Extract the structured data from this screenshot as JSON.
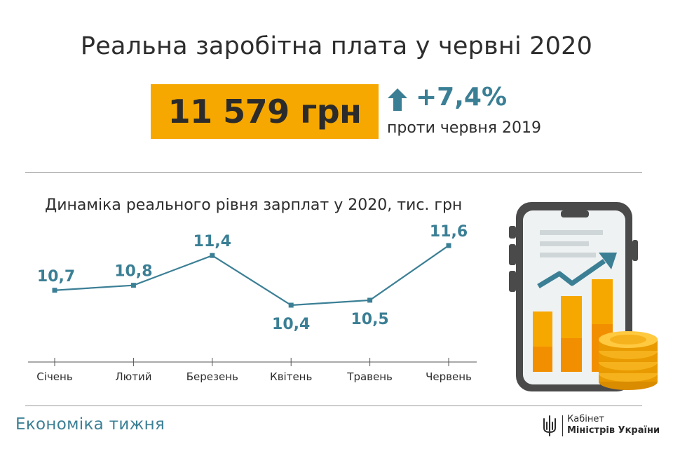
{
  "header": {
    "title": "Реальна заробітна плата у червні 2020",
    "amount": "11 579 грн",
    "change": "+7,4%",
    "compare": "проти червня 2019"
  },
  "chart_data": {
    "type": "line",
    "title": "Динаміка реального рівня зарплат у 2020, тис. грн",
    "categories": [
      "Січень",
      "Лютий",
      "Березень",
      "Квітень",
      "Травень",
      "Червень"
    ],
    "values": [
      10.7,
      10.8,
      11.4,
      10.4,
      10.5,
      11.6
    ],
    "value_labels": [
      "10,7",
      "10,8",
      "11,4",
      "10,4",
      "10,5",
      "11,6"
    ],
    "line_color": "#3b7f95",
    "grid": false
  },
  "footer": {
    "section": "Економіка тижня",
    "logo_line1": "Кабінет",
    "logo_line2": "Міністрів України"
  },
  "colors": {
    "accent": "#f6a800",
    "teal": "#3b7f95"
  }
}
